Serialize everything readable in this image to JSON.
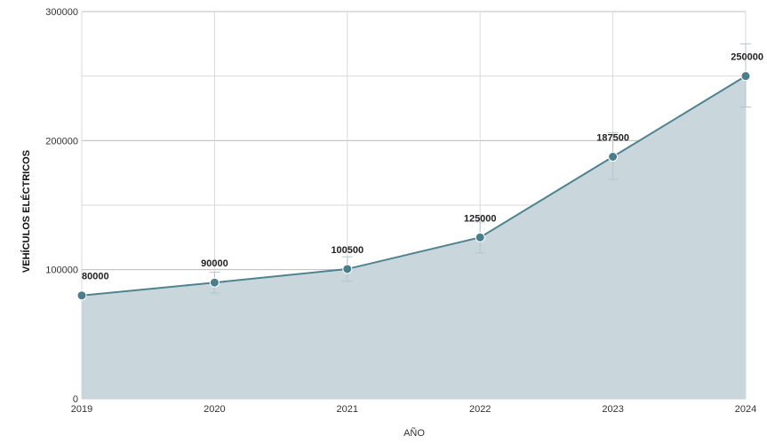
{
  "chart_data": {
    "type": "area",
    "xlabel": "AÑO",
    "ylabel": "VEHÍCULOS ELÉCTRICOS",
    "x": [
      "2019",
      "2020",
      "2021",
      "2022",
      "2023",
      "2024"
    ],
    "y": [
      80000,
      90000,
      100500,
      125000,
      187500,
      250000
    ],
    "data_labels": [
      "80000",
      "90000",
      "100500",
      "125000",
      "187500",
      "250000"
    ],
    "error_bars": [
      [
        null,
        null
      ],
      [
        82000,
        98000
      ],
      [
        91000,
        110000
      ],
      [
        113000,
        137000
      ],
      [
        170000,
        206000
      ],
      [
        226000,
        275000
      ]
    ],
    "ylim": [
      0,
      300000
    ],
    "yticks": [
      0,
      100000,
      200000,
      300000
    ],
    "ytick_labels": [
      "0",
      "100000",
      "200000",
      "300000"
    ],
    "grid": true,
    "colors": {
      "fill": "#c9d7dd",
      "line": "#4f8390",
      "marker": "#4a7e8b",
      "grid": "#d9d9d9",
      "grid_major": "#bfbfbf",
      "error_bar": "#b8c3c6"
    }
  }
}
